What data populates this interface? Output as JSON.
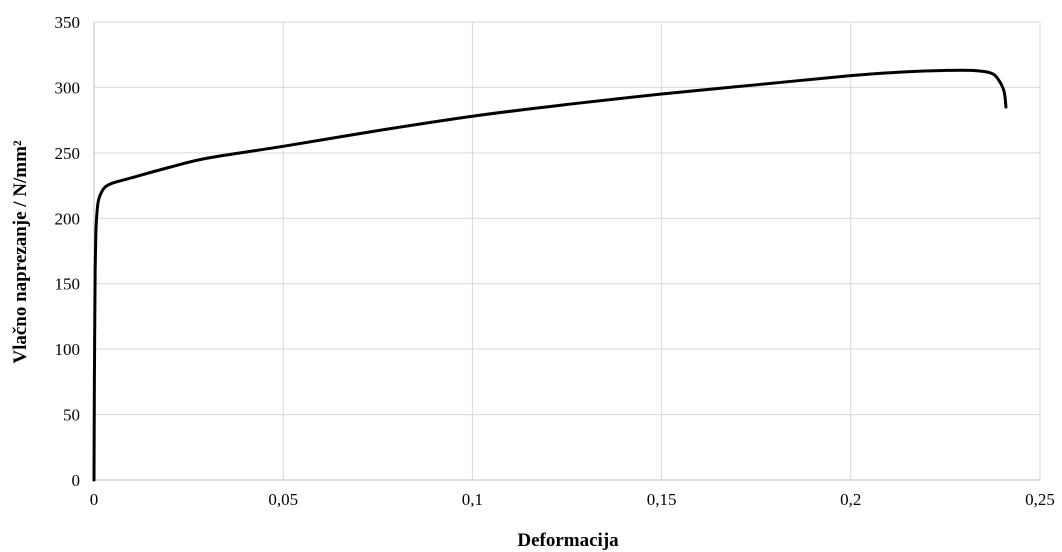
{
  "chart_data": {
    "type": "line",
    "title": "",
    "xlabel": "Deformacija",
    "ylabel": "Vlačno naprezanje / N/mm²",
    "xlim": [
      0,
      0.25
    ],
    "ylim": [
      0,
      350
    ],
    "x_ticks": [
      0,
      0.05,
      0.1,
      0.15,
      0.2,
      0.25
    ],
    "x_tick_labels": [
      "0",
      "0,05",
      "0,1",
      "0,15",
      "0,2",
      "0,25"
    ],
    "y_ticks": [
      0,
      50,
      100,
      150,
      200,
      250,
      300,
      350
    ],
    "y_tick_labels": [
      "0",
      "50",
      "100",
      "150",
      "200",
      "250",
      "300",
      "350"
    ],
    "grid": true,
    "legend": "none",
    "series": [
      {
        "color": "#000000",
        "x": [
          0,
          0.0001,
          0.0002,
          0.0003,
          0.0005,
          0.0008,
          0.0012,
          0.002,
          0.003,
          0.005,
          0.01,
          0.02,
          0.03,
          0.05,
          0.075,
          0.1,
          0.125,
          0.15,
          0.175,
          0.2,
          0.215,
          0.225,
          0.232,
          0.237,
          0.239,
          0.2405,
          0.241
        ],
        "y": [
          0,
          75,
          120,
          160,
          190,
          205,
          214,
          220,
          224,
          227,
          231,
          239,
          246,
          255,
          267,
          278,
          287,
          295,
          302,
          309,
          312,
          313,
          313,
          311,
          306,
          297,
          285
        ]
      }
    ]
  }
}
